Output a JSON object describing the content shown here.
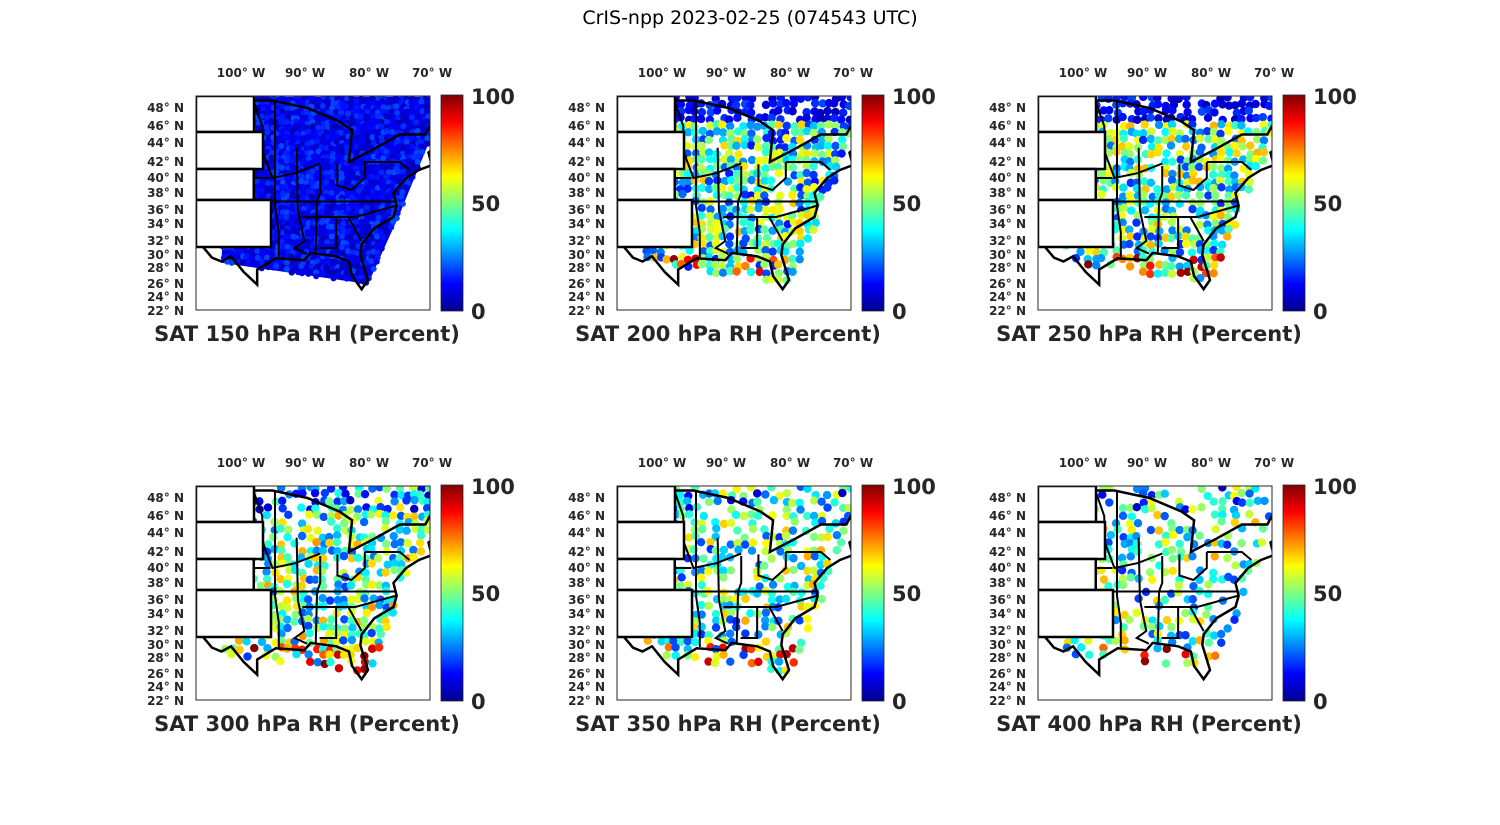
{
  "figure_title": "CrIS-npp 2023-02-25 (074543 UTC)",
  "colormap": "jet",
  "colors": {
    "land_outline": "#000000",
    "no_data": "#ffffff",
    "text": "#262626"
  },
  "lon_ticks": [
    "100° W",
    "90° W",
    "80° W",
    "70° W"
  ],
  "lat_ticks": [
    "48° N",
    "46° N",
    "44° N",
    "42° N",
    "40° N",
    "38° N",
    "36° N",
    "34° N",
    "32° N",
    "30° N",
    "28° N",
    "26° N",
    "24° N",
    "22° N"
  ],
  "colorbar": {
    "min": 0,
    "max": 100,
    "ticks": [
      "100",
      "50",
      "0"
    ]
  },
  "panels": [
    {
      "title": "SAT 150 hPa RH (Percent)",
      "level_hPa": 150,
      "typical_rh_percent": 8
    },
    {
      "title": "SAT 200 hPa RH (Percent)",
      "level_hPa": 200,
      "typical_rh_percent": 35
    },
    {
      "title": "SAT 250 hPa RH (Percent)",
      "level_hPa": 250,
      "typical_rh_percent": 40
    },
    {
      "title": "SAT 300 hPa RH (Percent)",
      "level_hPa": 300,
      "typical_rh_percent": 45
    },
    {
      "title": "SAT 350 hPa RH (Percent)",
      "level_hPa": 350,
      "typical_rh_percent": 40
    },
    {
      "title": "SAT 400 hPa RH (Percent)",
      "level_hPa": 400,
      "typical_rh_percent": 40
    }
  ]
}
